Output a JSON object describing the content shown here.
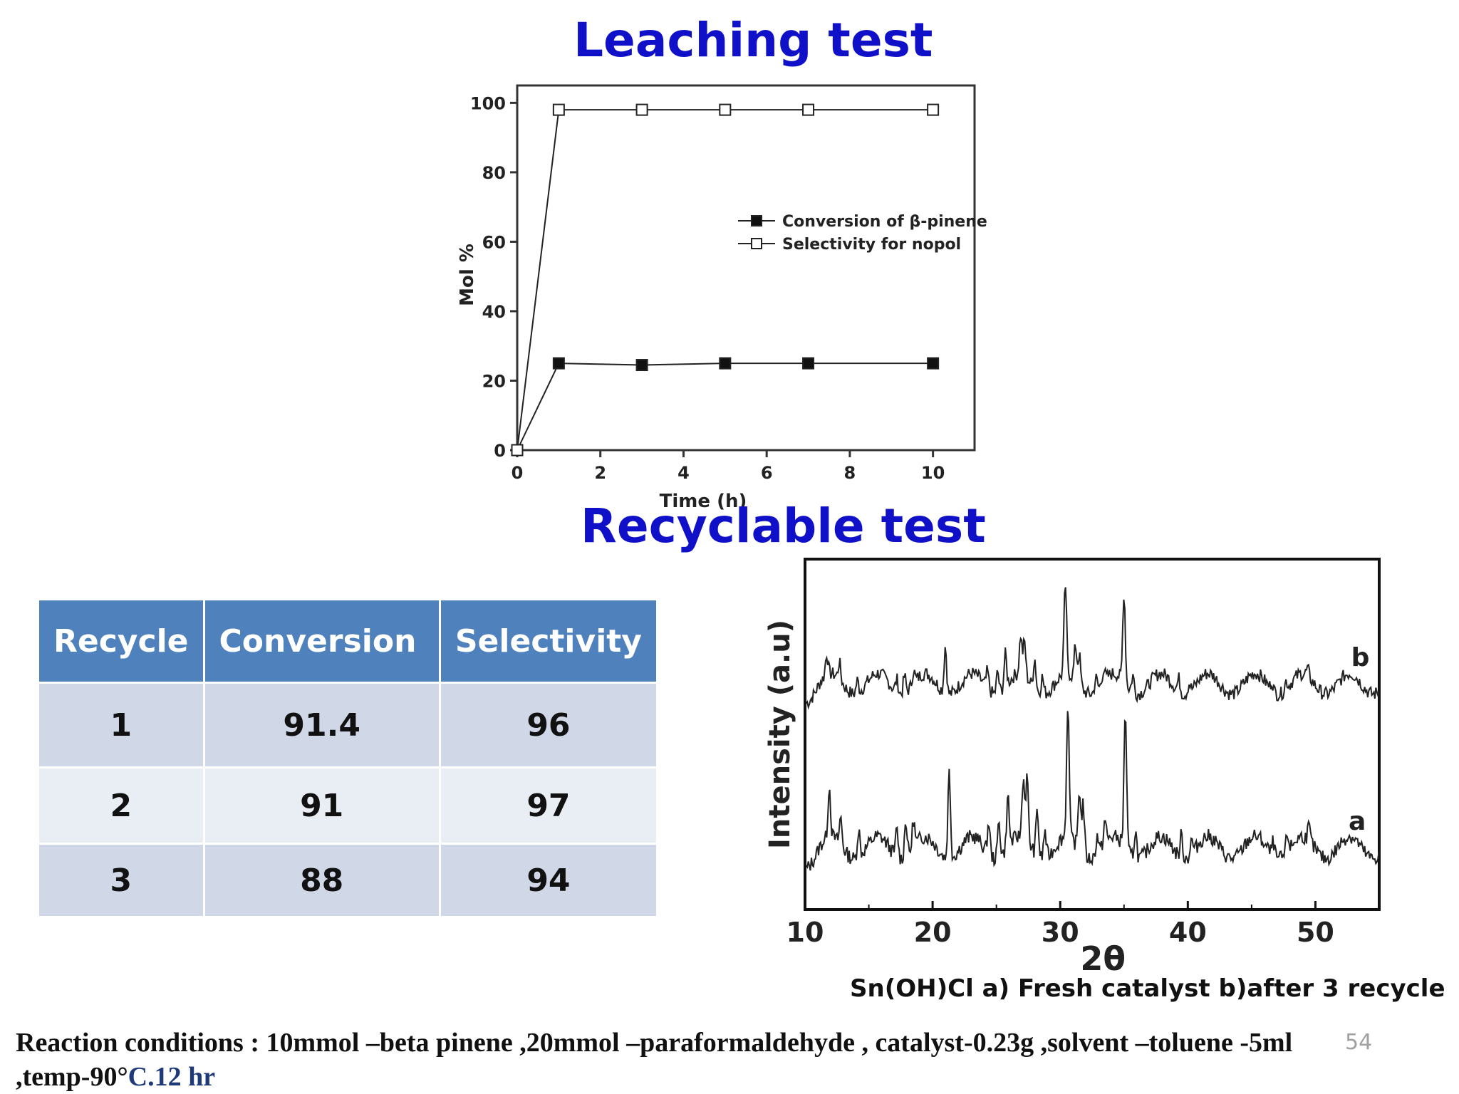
{
  "titles": {
    "leaching": "Leaching test",
    "recyclable": "Recyclable test"
  },
  "colors": {
    "title": "#1010c8",
    "table_header": "#4f81bd",
    "row_a": "#d0d8e8",
    "row_b": "#e9edf4"
  },
  "chart_data": [
    {
      "type": "line",
      "title": "",
      "xlabel": "Time (h)",
      "ylabel": "Mol %",
      "xlim": [
        0,
        11
      ],
      "ylim": [
        0,
        105
      ],
      "xticks": [
        0,
        2,
        4,
        6,
        8,
        10
      ],
      "yticks": [
        0,
        20,
        40,
        60,
        80,
        100
      ],
      "x": [
        0,
        1,
        3,
        5,
        7,
        10
      ],
      "series": [
        {
          "name": "Conversion of β-pinene",
          "marker": "filled-square",
          "values": [
            0,
            25,
            24.5,
            25,
            25,
            25
          ]
        },
        {
          "name": "Selectivity for nopol",
          "marker": "open-square",
          "values": [
            0,
            98,
            98,
            98,
            98,
            98
          ]
        }
      ],
      "legend_position": "center-right",
      "grid": false
    },
    {
      "type": "line",
      "title": "",
      "xlabel": "2θ",
      "ylabel": "Intensity (a.u)",
      "xlim": [
        10,
        55
      ],
      "xticks": [
        10,
        20,
        30,
        40,
        50
      ],
      "series_labels": [
        "a",
        "b"
      ],
      "peaks": {
        "a": [
          [
            11.9,
            0.55
          ],
          [
            12.8,
            0.3
          ],
          [
            14.2,
            0.3
          ],
          [
            17.2,
            0.3
          ],
          [
            17.9,
            0.4
          ],
          [
            18.5,
            0.3
          ],
          [
            21.3,
            0.95
          ],
          [
            24.4,
            0.35
          ],
          [
            25.2,
            0.4
          ],
          [
            25.9,
            0.55
          ],
          [
            27.1,
            0.65
          ],
          [
            27.4,
            0.7
          ],
          [
            28.2,
            0.5
          ],
          [
            28.8,
            0.3
          ],
          [
            30.6,
            1.45
          ],
          [
            31.5,
            0.65
          ],
          [
            31.8,
            0.55
          ],
          [
            32.9,
            0.2
          ],
          [
            33.5,
            0.25
          ],
          [
            35.1,
            1.5
          ],
          [
            35.9,
            0.3
          ],
          [
            39.5,
            0.25
          ],
          [
            40.3,
            0.15
          ],
          [
            46.7,
            0.15
          ],
          [
            47.8,
            0.2
          ],
          [
            49.5,
            0.15
          ]
        ],
        "b": [
          [
            11.7,
            0.25
          ],
          [
            12.7,
            0.2
          ],
          [
            14.1,
            0.15
          ],
          [
            17.2,
            0.15
          ],
          [
            17.8,
            0.2
          ],
          [
            18.5,
            0.15
          ],
          [
            21.0,
            0.55
          ],
          [
            24.3,
            0.2
          ],
          [
            25.1,
            0.25
          ],
          [
            25.7,
            0.38
          ],
          [
            26.9,
            0.45
          ],
          [
            27.2,
            0.4
          ],
          [
            28.0,
            0.35
          ],
          [
            28.6,
            0.2
          ],
          [
            30.4,
            1.05
          ],
          [
            31.2,
            0.4
          ],
          [
            31.5,
            0.35
          ],
          [
            32.8,
            0.15
          ],
          [
            33.4,
            0.15
          ],
          [
            35.0,
            1.05
          ],
          [
            35.7,
            0.2
          ],
          [
            39.3,
            0.15
          ],
          [
            40.1,
            0.1
          ],
          [
            46.6,
            0.1
          ],
          [
            47.7,
            0.1
          ],
          [
            49.4,
            0.08
          ]
        ]
      }
    }
  ],
  "table": {
    "headers": [
      "Recycle",
      "Conversion",
      "Selectivity"
    ],
    "rows": [
      [
        "1",
        "91.4",
        "96"
      ],
      [
        "2",
        "91",
        "97"
      ],
      [
        "3",
        "88",
        "94"
      ]
    ]
  },
  "xrd_caption": "Sn(OH)Cl a) Fresh catalyst  b)after 3 recycle",
  "conditions": {
    "main": "Reaction conditions : 10mmol –beta pinene ,20mmol –paraformaldehyde , catalyst-0.23g ,solvent –toluene -5ml ,temp-90°",
    "tail": "C.12 hr"
  },
  "page_number": "54"
}
